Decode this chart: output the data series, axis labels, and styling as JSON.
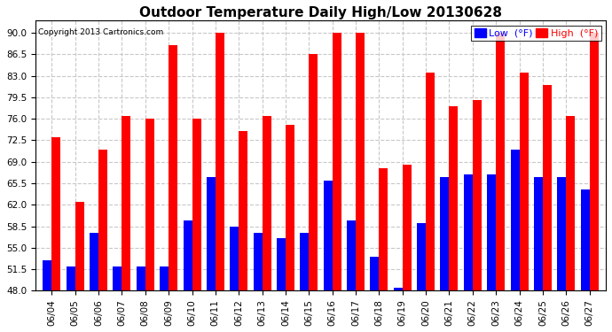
{
  "title": "Outdoor Temperature Daily High/Low 20130628",
  "copyright": "Copyright 2013 Cartronics.com",
  "legend_low": "Low  (°F)",
  "legend_high": "High  (°F)",
  "low_color": "#0000ff",
  "high_color": "#ff0000",
  "background_color": "#ffffff",
  "grid_color": "#c8c8c8",
  "ylim": [
    48.0,
    92.0
  ],
  "yticks": [
    48.0,
    51.5,
    55.0,
    58.5,
    62.0,
    65.5,
    69.0,
    72.5,
    76.0,
    79.5,
    83.0,
    86.5,
    90.0
  ],
  "dates": [
    "06/04",
    "06/05",
    "06/06",
    "06/07",
    "06/08",
    "06/09",
    "06/10",
    "06/11",
    "06/12",
    "06/13",
    "06/14",
    "06/15",
    "06/16",
    "06/17",
    "06/18",
    "06/19",
    "06/20",
    "06/21",
    "06/22",
    "06/23",
    "06/24",
    "06/25",
    "06/26",
    "06/27"
  ],
  "highs": [
    73.0,
    62.5,
    71.0,
    76.5,
    76.0,
    88.0,
    76.0,
    90.0,
    74.0,
    76.5,
    75.0,
    86.5,
    90.0,
    90.0,
    68.0,
    68.5,
    83.5,
    78.0,
    79.0,
    90.0,
    83.5,
    81.5,
    76.5,
    90.0
  ],
  "lows": [
    53.0,
    52.0,
    57.5,
    52.0,
    52.0,
    52.0,
    59.5,
    66.5,
    58.5,
    57.5,
    56.5,
    57.5,
    66.0,
    59.5,
    53.5,
    48.5,
    59.0,
    66.5,
    67.0,
    67.0,
    71.0,
    66.5,
    66.5,
    64.5
  ],
  "ybase": 48.0,
  "bar_width": 0.38,
  "title_fontsize": 11,
  "tick_fontsize": 7.5,
  "legend_fontsize": 8,
  "figwidth": 6.9,
  "figheight": 3.75,
  "dpi": 100
}
